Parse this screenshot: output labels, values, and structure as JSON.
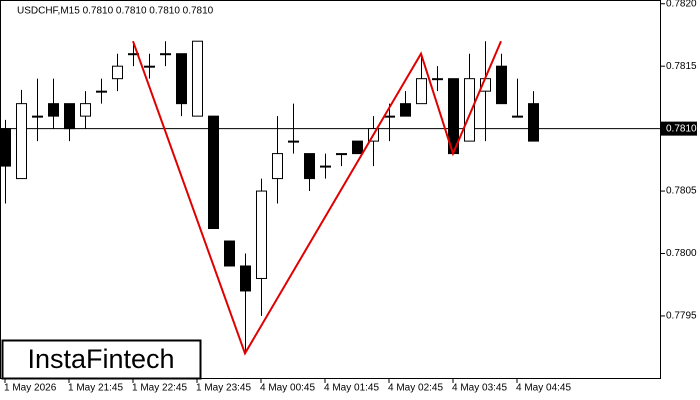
{
  "chart_data": {
    "type": "candlestick",
    "title": "USDCHF,M15  0.7810 0.7810 0.7810 0.7810",
    "logo": "InstaFintech",
    "up_color": "#ffffff",
    "down_color": "#000000",
    "open": [
      0.781,
      0.7806,
      0.7811,
      0.7812,
      0.7812,
      0.7811,
      0.7813,
      0.7814,
      0.7816,
      0.7815,
      0.7816,
      0.7816,
      0.7811,
      0.7811,
      0.7801,
      0.7799,
      0.7798,
      0.7806,
      0.7809,
      0.7808,
      0.7807,
      0.7808,
      0.7809,
      0.7809,
      0.7811,
      0.7812,
      0.7812,
      0.7814,
      0.7814,
      0.7809,
      0.7813,
      0.7815,
      0.7811,
      0.7812
    ],
    "high": [
      0.78107,
      0.78131,
      0.7814,
      0.7814,
      0.7812,
      0.7813,
      0.7814,
      0.7816,
      0.7817,
      0.7816,
      0.7817,
      0.7816,
      0.7817,
      0.7811,
      0.7801,
      0.78,
      0.7806,
      0.7811,
      0.7812,
      0.7808,
      0.7808,
      0.7808,
      0.7809,
      0.7811,
      0.7812,
      0.7813,
      0.7816,
      0.7815,
      0.7814,
      0.7816,
      0.7817,
      0.7816,
      0.7814,
      0.7813
    ],
    "low": [
      0.7804,
      0.7806,
      0.7809,
      0.781,
      0.7809,
      0.781,
      0.7812,
      0.7813,
      0.7815,
      0.7814,
      0.7815,
      0.7811,
      0.7811,
      0.7802,
      0.7799,
      0.7792,
      0.7795,
      0.7804,
      0.7808,
      0.7805,
      0.7806,
      0.7807,
      0.7808,
      0.7807,
      0.7809,
      0.7811,
      0.7812,
      0.7813,
      0.7808,
      0.7809,
      0.7809,
      0.7812,
      0.7811,
      0.7809
    ],
    "close": [
      0.7807,
      0.7812,
      0.7811,
      0.7811,
      0.781,
      0.7812,
      0.7813,
      0.7815,
      0.7816,
      0.7815,
      0.7816,
      0.7812,
      0.7817,
      0.7802,
      0.7799,
      0.7797,
      0.7805,
      0.7808,
      0.7809,
      0.7806,
      0.7807,
      0.7808,
      0.7808,
      0.781,
      0.7811,
      0.7811,
      0.7814,
      0.7814,
      0.7808,
      0.7814,
      0.7814,
      0.7812,
      0.7811,
      0.7809
    ],
    "xlim": [
      -0.3125,
      41
    ],
    "xticks": [
      {
        "value": 0,
        "label": "1 May 2026"
      },
      {
        "value": 4,
        "label": "1 May 21:45"
      },
      {
        "value": 8,
        "label": "1 May 22:45"
      },
      {
        "value": 12,
        "label": "1 May 23:45"
      },
      {
        "value": 16,
        "label": "4 May 00:45"
      },
      {
        "value": 20,
        "label": "4 May 01:45"
      },
      {
        "value": 24,
        "label": "4 May 02:45"
      },
      {
        "value": 28,
        "label": "4 May 03:45"
      },
      {
        "value": 32,
        "label": "4 May 04:45"
      }
    ],
    "ylim": [
      0.778995,
      0.78203
    ],
    "yticks": [
      {
        "value": 0.7795,
        "label": "0.7795"
      },
      {
        "value": 0.78,
        "label": "0.7800"
      },
      {
        "value": 0.7805,
        "label": "0.7805"
      },
      {
        "value": 0.7815,
        "label": "0.7815"
      },
      {
        "value": 0.782,
        "label": "0.7820"
      }
    ],
    "last_price": {
      "value": 0.781,
      "label": "0.7810"
    },
    "pattern": {
      "color": "#e00000",
      "x": [
        8,
        15,
        26,
        28,
        31
      ],
      "y": [
        0.7817,
        0.7792,
        0.7816,
        0.7808,
        0.7817
      ]
    }
  }
}
